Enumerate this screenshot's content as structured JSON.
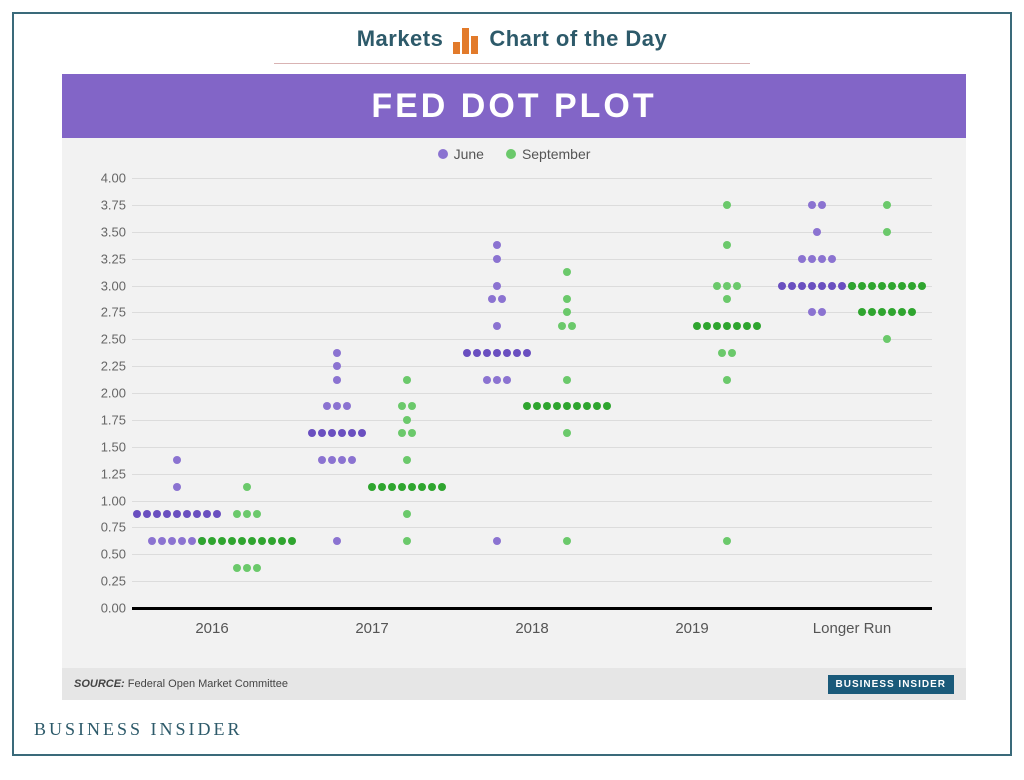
{
  "header": {
    "left_word": "Markets",
    "right_phrase": "Chart of the Day",
    "icon_color": "#e27a2a",
    "text_color": "#2d5a6a",
    "underline_color": "#d9b3b3"
  },
  "chart": {
    "type": "dot-plot",
    "title": "FED DOT PLOT",
    "title_bg": "#8265c7",
    "title_color": "#ffffff",
    "card_bg": "#f2f2f2",
    "plot_bg": "#f2f2f2",
    "grid_color": "#dcdcdc",
    "axis_line_color": "#000000",
    "y": {
      "min": 0.0,
      "max": 4.0,
      "tick_step": 0.25,
      "label_fontsize": 13,
      "label_color": "#666666",
      "format_decimals": 2
    },
    "x_categories": [
      "2016",
      "2017",
      "2018",
      "2019",
      "Longer Run"
    ],
    "series": [
      {
        "name": "June",
        "color": "#8b73d1",
        "dark_color": "#6a4fc0",
        "dot_radius": 4,
        "offset": -0.22
      },
      {
        "name": "September",
        "color": "#6bc96b",
        "dark_color": "#2fa52f",
        "dot_radius": 4,
        "offset": 0.22
      }
    ],
    "data": {
      "June": {
        "2016": [
          {
            "y": 0.625,
            "n": 6,
            "dark": false
          },
          {
            "y": 0.875,
            "n": 9,
            "dark": true
          },
          {
            "y": 1.125,
            "n": 1,
            "dark": false
          },
          {
            "y": 1.375,
            "n": 1,
            "dark": false
          }
        ],
        "2017": [
          {
            "y": 0.625,
            "n": 1,
            "dark": false
          },
          {
            "y": 1.375,
            "n": 4,
            "dark": false
          },
          {
            "y": 1.625,
            "n": 6,
            "dark": true
          },
          {
            "y": 1.875,
            "n": 3,
            "dark": false
          },
          {
            "y": 2.125,
            "n": 1,
            "dark": false
          },
          {
            "y": 2.25,
            "n": 1,
            "dark": false
          },
          {
            "y": 2.375,
            "n": 1,
            "dark": false
          }
        ],
        "2018": [
          {
            "y": 0.625,
            "n": 1,
            "dark": false
          },
          {
            "y": 2.125,
            "n": 3,
            "dark": false
          },
          {
            "y": 2.375,
            "n": 7,
            "dark": true
          },
          {
            "y": 2.625,
            "n": 1,
            "dark": false
          },
          {
            "y": 2.875,
            "n": 2,
            "dark": false
          },
          {
            "y": 3.0,
            "n": 1,
            "dark": false
          },
          {
            "y": 3.25,
            "n": 1,
            "dark": false
          },
          {
            "y": 3.375,
            "n": 1,
            "dark": false
          }
        ],
        "2019": [],
        "Longer Run": [
          {
            "y": 2.75,
            "n": 2,
            "dark": false
          },
          {
            "y": 3.0,
            "n": 8,
            "dark": true
          },
          {
            "y": 3.25,
            "n": 4,
            "dark": false
          },
          {
            "y": 3.5,
            "n": 1,
            "dark": false
          },
          {
            "y": 3.75,
            "n": 2,
            "dark": false
          }
        ]
      },
      "September": {
        "2016": [
          {
            "y": 0.375,
            "n": 3,
            "dark": false
          },
          {
            "y": 0.625,
            "n": 10,
            "dark": true
          },
          {
            "y": 0.875,
            "n": 3,
            "dark": false
          },
          {
            "y": 1.125,
            "n": 1,
            "dark": false
          }
        ],
        "2017": [
          {
            "y": 0.625,
            "n": 1,
            "dark": false
          },
          {
            "y": 0.875,
            "n": 1,
            "dark": false
          },
          {
            "y": 1.125,
            "n": 8,
            "dark": true
          },
          {
            "y": 1.375,
            "n": 1,
            "dark": false
          },
          {
            "y": 1.625,
            "n": 2,
            "dark": false
          },
          {
            "y": 1.75,
            "n": 1,
            "dark": false
          },
          {
            "y": 1.875,
            "n": 2,
            "dark": false
          },
          {
            "y": 2.125,
            "n": 1,
            "dark": false
          }
        ],
        "2018": [
          {
            "y": 0.625,
            "n": 1,
            "dark": false
          },
          {
            "y": 1.625,
            "n": 1,
            "dark": false
          },
          {
            "y": 1.875,
            "n": 9,
            "dark": true
          },
          {
            "y": 2.125,
            "n": 1,
            "dark": false
          },
          {
            "y": 2.625,
            "n": 2,
            "dark": false
          },
          {
            "y": 2.75,
            "n": 1,
            "dark": false
          },
          {
            "y": 2.875,
            "n": 1,
            "dark": false
          },
          {
            "y": 3.125,
            "n": 1,
            "dark": false
          }
        ],
        "2019": [
          {
            "y": 0.625,
            "n": 1,
            "dark": false
          },
          {
            "y": 2.125,
            "n": 1,
            "dark": false
          },
          {
            "y": 2.375,
            "n": 2,
            "dark": false
          },
          {
            "y": 2.625,
            "n": 7,
            "dark": true
          },
          {
            "y": 2.875,
            "n": 1,
            "dark": false
          },
          {
            "y": 3.0,
            "n": 3,
            "dark": false
          },
          {
            "y": 3.375,
            "n": 1,
            "dark": false
          },
          {
            "y": 3.75,
            "n": 1,
            "dark": false
          }
        ],
        "Longer Run": [
          {
            "y": 2.5,
            "n": 1,
            "dark": false
          },
          {
            "y": 2.75,
            "n": 6,
            "dark": true
          },
          {
            "y": 3.0,
            "n": 8,
            "dark": true
          },
          {
            "y": 3.5,
            "n": 1,
            "dark": false
          },
          {
            "y": 3.75,
            "n": 1,
            "dark": false
          }
        ]
      }
    },
    "legend_fontsize": 14,
    "xlabel_fontsize": 15,
    "xlabel_color": "#555555"
  },
  "footer": {
    "source_label": "SOURCE:",
    "source_text": "Federal Open Market Committee",
    "badge_text": "BUSINESS INSIDER",
    "badge_bg": "#1a5a7a",
    "footer_brand": "BUSINESS INSIDER",
    "frame_border_color": "#3a6a7a"
  }
}
